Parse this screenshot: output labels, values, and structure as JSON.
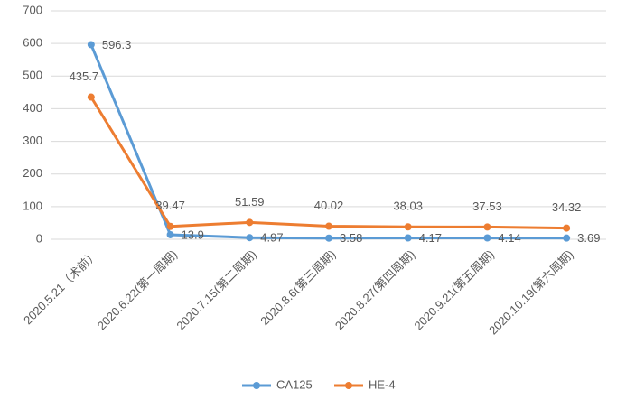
{
  "chart_data": {
    "type": "line",
    "categories": [
      "2020.5.21（术前）",
      "2020.6.22(第一周期)",
      "2020.7.15(第二周期)",
      "2020.8.6(第三周期)",
      "2020.8.27(第四周期)",
      "2020.9.21(第五周期)",
      "2020.10.19(第六周期)"
    ],
    "series": [
      {
        "name": "CA125",
        "color": "#5b9bd5",
        "values": [
          596.3,
          13.9,
          4.97,
          3.58,
          4.17,
          4.14,
          3.69
        ]
      },
      {
        "name": "HE-4",
        "color": "#ed7d31",
        "values": [
          435.7,
          39.47,
          51.59,
          40.02,
          38.03,
          37.53,
          34.32
        ]
      }
    ],
    "ylim": [
      0,
      700
    ],
    "yticks": [
      0,
      100,
      200,
      300,
      400,
      500,
      600,
      700
    ],
    "grid": true,
    "legend": "bottom"
  }
}
